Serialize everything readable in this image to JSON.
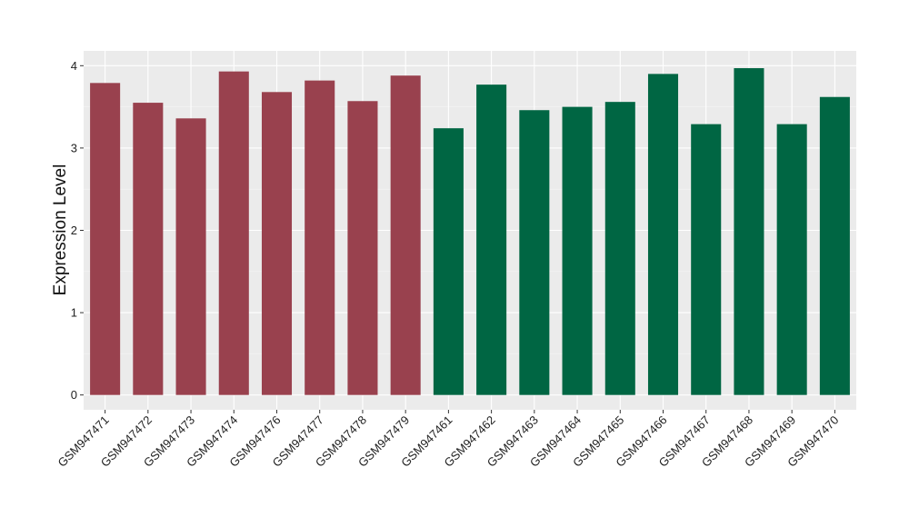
{
  "chart_data": {
    "type": "bar",
    "title": "",
    "xlabel": "",
    "ylabel": "Expression Level",
    "ylim": [
      -0.18,
      4.18
    ],
    "yticks": [
      0,
      1,
      2,
      3,
      4
    ],
    "grid": true,
    "legend": "none",
    "categories": [
      "GSM947471",
      "GSM947472",
      "GSM947473",
      "GSM947474",
      "GSM947476",
      "GSM947477",
      "GSM947478",
      "GSM947479",
      "GSM947461",
      "GSM947462",
      "GSM947463",
      "GSM947464",
      "GSM947465",
      "GSM947466",
      "GSM947467",
      "GSM947468",
      "GSM947469",
      "GSM947470"
    ],
    "values": [
      3.79,
      3.55,
      3.36,
      3.93,
      3.68,
      3.82,
      3.57,
      3.88,
      3.24,
      3.77,
      3.46,
      3.5,
      3.56,
      3.9,
      3.29,
      3.97,
      3.29,
      3.62
    ],
    "bar_colors": [
      "#99414e",
      "#99414e",
      "#99414e",
      "#99414e",
      "#99414e",
      "#99414e",
      "#99414e",
      "#99414e",
      "#006643",
      "#006643",
      "#006643",
      "#006643",
      "#006643",
      "#006643",
      "#006643",
      "#006643",
      "#006643",
      "#006643"
    ],
    "colors": {
      "panel_background": "#ebebeb",
      "grid_major": "#ffffff",
      "grid_minor": "#f5f5f5",
      "axis_ticks": "#333333"
    }
  }
}
